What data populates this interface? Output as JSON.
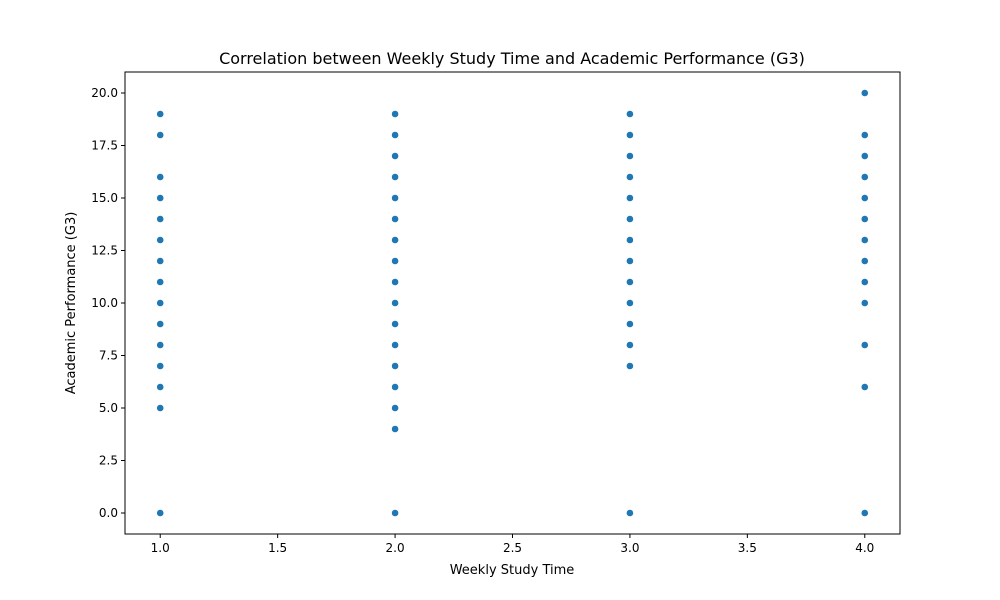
{
  "chart_data": {
    "type": "scatter",
    "title": "Correlation between Weekly Study Time and Academic Performance (G3)",
    "xlabel": "Weekly Study Time",
    "ylabel": "Academic Performance (G3)",
    "xlim": [
      0.85,
      4.15
    ],
    "ylim": [
      -1.0,
      21.0
    ],
    "xticks": [
      1.0,
      1.5,
      2.0,
      2.5,
      3.0,
      3.5,
      4.0
    ],
    "xtick_labels": [
      "1.0",
      "1.5",
      "2.0",
      "2.5",
      "3.0",
      "3.5",
      "4.0"
    ],
    "yticks": [
      0.0,
      2.5,
      5.0,
      7.5,
      10.0,
      12.5,
      15.0,
      17.5,
      20.0
    ],
    "ytick_labels": [
      "0.0",
      "2.5",
      "5.0",
      "7.5",
      "10.0",
      "12.5",
      "15.0",
      "17.5",
      "20.0"
    ],
    "grid": false,
    "marker_color": "#1f77b4",
    "series": [
      {
        "points": [
          [
            1,
            0
          ],
          [
            1,
            5
          ],
          [
            1,
            6
          ],
          [
            1,
            7
          ],
          [
            1,
            8
          ],
          [
            1,
            9
          ],
          [
            1,
            10
          ],
          [
            1,
            11
          ],
          [
            1,
            12
          ],
          [
            1,
            13
          ],
          [
            1,
            14
          ],
          [
            1,
            15
          ],
          [
            1,
            16
          ],
          [
            1,
            18
          ],
          [
            1,
            19
          ],
          [
            2,
            0
          ],
          [
            2,
            4
          ],
          [
            2,
            5
          ],
          [
            2,
            6
          ],
          [
            2,
            7
          ],
          [
            2,
            8
          ],
          [
            2,
            9
          ],
          [
            2,
            10
          ],
          [
            2,
            11
          ],
          [
            2,
            12
          ],
          [
            2,
            13
          ],
          [
            2,
            14
          ],
          [
            2,
            15
          ],
          [
            2,
            16
          ],
          [
            2,
            17
          ],
          [
            2,
            18
          ],
          [
            2,
            19
          ],
          [
            3,
            0
          ],
          [
            3,
            7
          ],
          [
            3,
            8
          ],
          [
            3,
            9
          ],
          [
            3,
            10
          ],
          [
            3,
            11
          ],
          [
            3,
            12
          ],
          [
            3,
            13
          ],
          [
            3,
            14
          ],
          [
            3,
            15
          ],
          [
            3,
            16
          ],
          [
            3,
            17
          ],
          [
            3,
            18
          ],
          [
            3,
            19
          ],
          [
            4,
            0
          ],
          [
            4,
            6
          ],
          [
            4,
            8
          ],
          [
            4,
            10
          ],
          [
            4,
            11
          ],
          [
            4,
            12
          ],
          [
            4,
            13
          ],
          [
            4,
            14
          ],
          [
            4,
            15
          ],
          [
            4,
            16
          ],
          [
            4,
            17
          ],
          [
            4,
            18
          ],
          [
            4,
            20
          ]
        ]
      }
    ]
  }
}
